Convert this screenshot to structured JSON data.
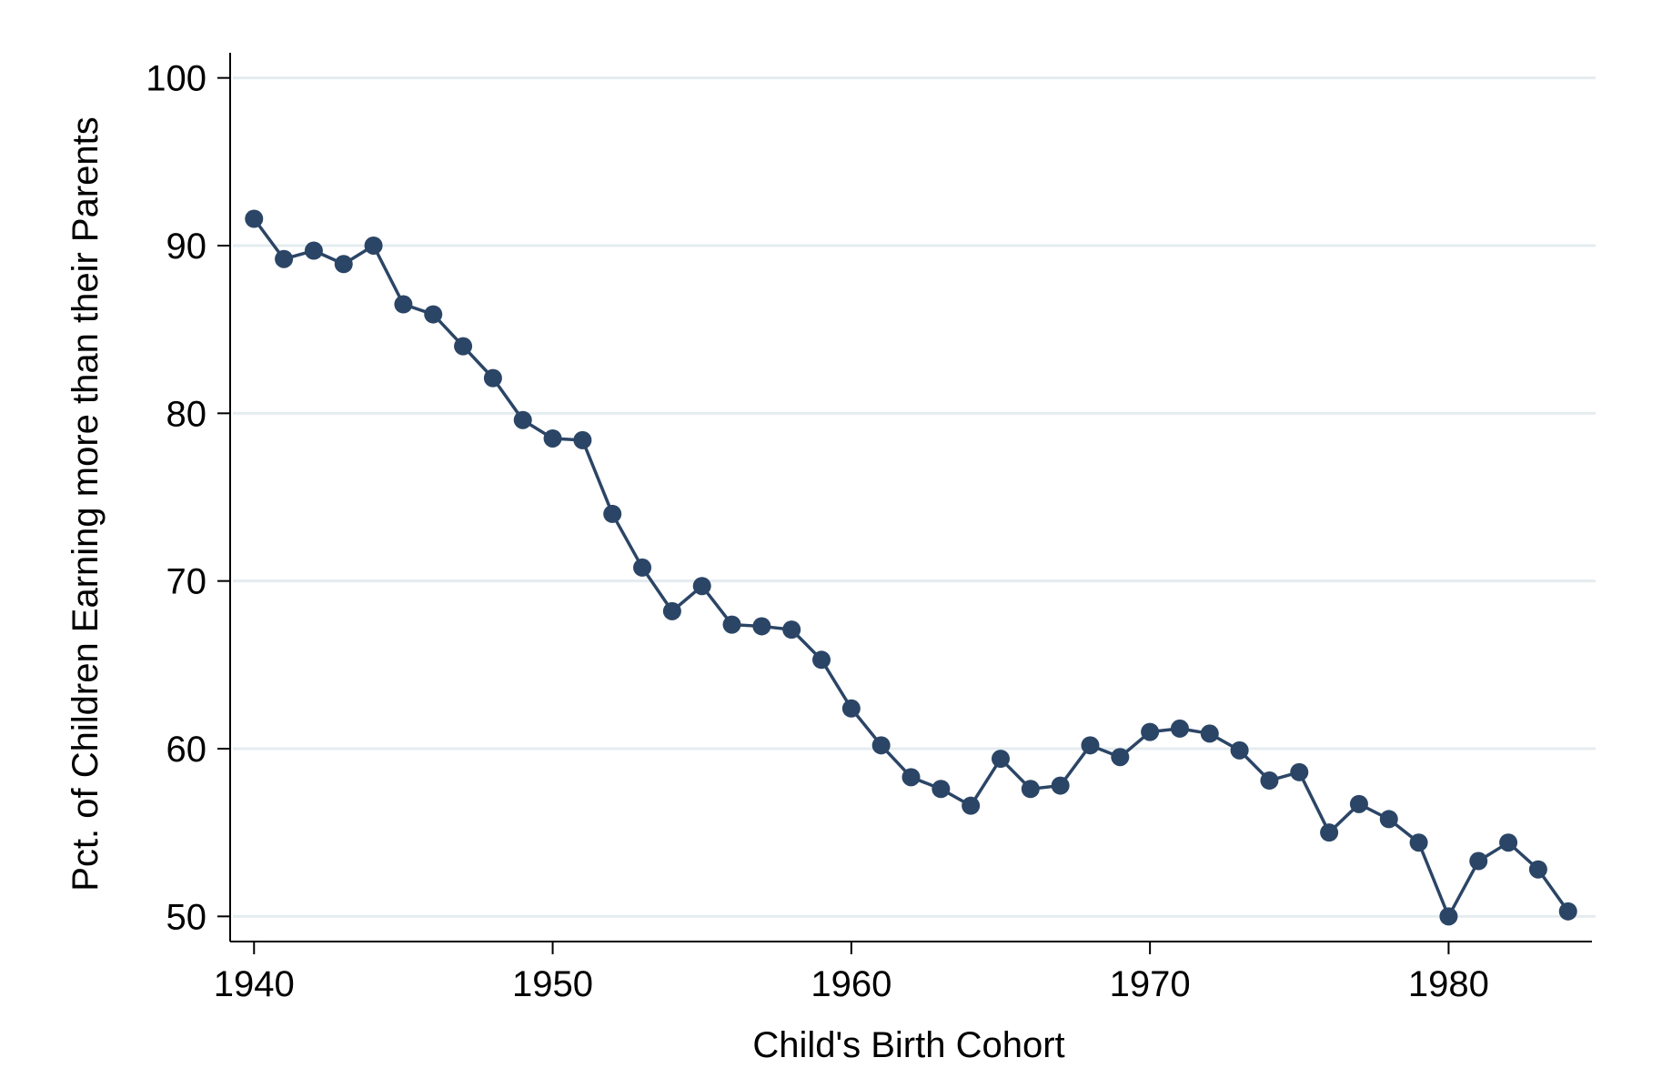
{
  "chart_data": {
    "type": "line",
    "title": "",
    "xlabel": "Child's Birth Cohort",
    "ylabel": "Pct. of Children Earning more than their Parents",
    "xlim": [
      1939.2,
      1984.8
    ],
    "ylim": [
      48.5,
      101.5
    ],
    "xticks": [
      1940,
      1950,
      1960,
      1970,
      1980
    ],
    "yticks": [
      50,
      60,
      70,
      80,
      90,
      100
    ],
    "grid": true,
    "legend": "none",
    "series": [
      {
        "color": "#2b4566",
        "x": [
          1940,
          1941,
          1942,
          1943,
          1944,
          1945,
          1946,
          1947,
          1948,
          1949,
          1950,
          1951,
          1952,
          1953,
          1954,
          1955,
          1956,
          1957,
          1958,
          1959,
          1960,
          1961,
          1962,
          1963,
          1964,
          1965,
          1966,
          1967,
          1968,
          1969,
          1970,
          1971,
          1972,
          1973,
          1974,
          1975,
          1976,
          1977,
          1978,
          1979,
          1980,
          1981,
          1982,
          1983,
          1984
        ],
        "values": [
          91.6,
          89.2,
          89.7,
          88.9,
          90.0,
          86.5,
          85.9,
          84.0,
          82.1,
          79.6,
          78.5,
          78.4,
          74.0,
          70.8,
          68.2,
          69.7,
          67.4,
          67.3,
          67.1,
          65.3,
          62.4,
          60.2,
          58.3,
          57.6,
          56.6,
          59.4,
          57.6,
          57.8,
          60.2,
          59.5,
          61.0,
          61.2,
          60.9,
          59.9,
          58.1,
          58.6,
          55.0,
          56.7,
          55.8,
          54.4,
          50.0,
          53.3,
          54.4,
          52.8,
          50.3
        ]
      }
    ]
  },
  "colors": {
    "line": "#2b4566",
    "grid": "#e4ecf0",
    "axis": "#000000"
  }
}
